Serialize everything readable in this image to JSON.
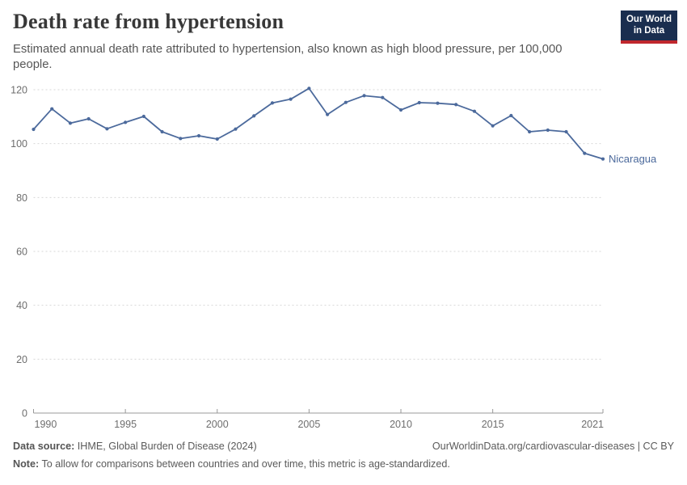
{
  "header": {
    "title": "Death rate from hypertension",
    "subtitle_line1": "Estimated annual death rate attributed to hypertension, also known as high blood pressure, per 100,000",
    "subtitle_line2": "people.",
    "logo": {
      "line1": "Our World",
      "line2": "in Data",
      "bg_color": "#1a2e4f",
      "accent_color": "#c0272d"
    }
  },
  "chart_data": {
    "type": "line",
    "title": "Death rate from hypertension",
    "xlabel": "",
    "ylabel": "",
    "xlim": [
      1990,
      2021
    ],
    "ylim": [
      0,
      120
    ],
    "xticks": [
      1990,
      1995,
      2000,
      2005,
      2010,
      2015,
      2021
    ],
    "yticks": [
      0,
      20,
      40,
      60,
      80,
      100,
      120
    ],
    "grid": "horizontal-dashed",
    "legend": "end-of-line-label",
    "series": [
      {
        "name": "Nicaragua",
        "color": "#4C6A9C",
        "x": [
          1990,
          1991,
          1992,
          1993,
          1994,
          1995,
          1996,
          1997,
          1998,
          1999,
          2000,
          2001,
          2002,
          2003,
          2004,
          2005,
          2006,
          2007,
          2008,
          2009,
          2010,
          2011,
          2012,
          2013,
          2014,
          2015,
          2016,
          2017,
          2018,
          2019,
          2020,
          2021
        ],
        "values": [
          105.3,
          112.9,
          107.6,
          109.2,
          105.5,
          107.9,
          110.1,
          104.4,
          101.9,
          102.9,
          101.7,
          105.4,
          110.3,
          115.1,
          116.5,
          120.5,
          110.8,
          115.3,
          117.8,
          117.1,
          112.5,
          115.2,
          115.0,
          114.5,
          112.0,
          106.6,
          110.4,
          104.4,
          105.0,
          104.4,
          96.4,
          94.3
        ]
      }
    ],
    "colors": {
      "gridline": "#d7d7d7",
      "axis": "#989898",
      "tick_label": "#6e6e6e"
    }
  },
  "footer": {
    "datasource_label": "Data source:",
    "datasource_value": " IHME, Global Burden of Disease (2024)",
    "rights": "OurWorldinData.org/cardiovascular-diseases | CC BY",
    "note_label": "Note:",
    "note_value": " To allow for comparisons between countries and over time, this metric is age-standardized."
  }
}
